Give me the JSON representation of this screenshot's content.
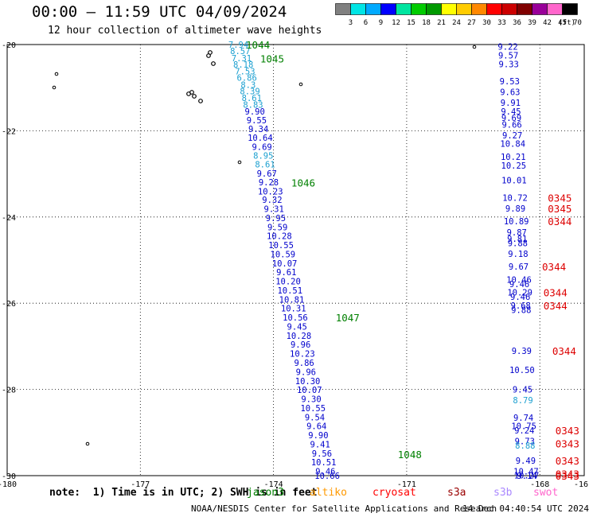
{
  "header": {
    "title": "00:00 – 11:59 UTC 04/09/2024",
    "subtitle": "12 hour collection of altimeter wave heights"
  },
  "legend": {
    "labels": [
      "3",
      "6",
      "9",
      "12",
      "15",
      "18",
      "21",
      "24",
      "27",
      "30",
      "33",
      "36",
      "39",
      "42",
      "45",
      "70"
    ],
    "unit": "(ft)",
    "colors": [
      "#808080",
      "#00e5e5",
      "#00aaff",
      "#0000ff",
      "#00e5a0",
      "#00cc00",
      "#009900",
      "#ffff00",
      "#ffcc00",
      "#ff8800",
      "#ff0000",
      "#cc0000",
      "#800000",
      "#990099",
      "#ff66cc",
      "#000000"
    ]
  },
  "footer": {
    "note": "note:  1) Time is in UTC; 2) SWH is in feet",
    "satellites": [
      {
        "name": "jason3",
        "color": "#008000"
      },
      {
        "name": "altiko",
        "color": "#ff9900"
      },
      {
        "name": "cryosat",
        "color": "#ff0000"
      },
      {
        "name": "s3a",
        "color": "#990000"
      },
      {
        "name": "s3b",
        "color": "#aa88ff"
      },
      {
        "name": "swot",
        "color": "#ff66cc"
      }
    ],
    "credit": "NOAA/NESDIS Center for Satellite Applications and Research",
    "timestamp": "14 Dec 04:40:54 UTC 2024"
  },
  "chart_data": {
    "type": "scatter",
    "xlim": [
      -180,
      -167
    ],
    "ylim": [
      -30,
      -20
    ],
    "x_ticks": [
      "-180",
      "-177",
      "-174",
      "-171",
      "-168",
      "-16"
    ],
    "y_ticks": [
      "-20",
      "-22",
      "-24",
      "-26",
      "-28",
      "-30"
    ],
    "grid": true,
    "series": [
      {
        "track": "west",
        "points": [
          {
            "x": -174.79,
            "y": -20.0,
            "v": "7.94",
            "c": "#1a9fd0"
          },
          {
            "x": -174.75,
            "y": -20.15,
            "v": "8.57",
            "c": "#1a9fd0"
          },
          {
            "x": -174.72,
            "y": -20.31,
            "v": "7.31",
            "c": "#1a9fd0"
          },
          {
            "x": -174.68,
            "y": -20.46,
            "v": "8.18",
            "c": "#1a9fd0"
          },
          {
            "x": -174.64,
            "y": -20.62,
            "v": "7.53",
            "c": "#1a9fd0"
          },
          {
            "x": -174.6,
            "y": -20.77,
            "v": "6.86",
            "c": "#1a9fd0"
          },
          {
            "x": -174.57,
            "y": -20.93,
            "v": "8.3",
            "c": "#1a9fd0"
          },
          {
            "x": -174.53,
            "y": -21.08,
            "v": "8.39",
            "c": "#1a9fd0"
          },
          {
            "x": -174.49,
            "y": -21.24,
            "v": "8.61",
            "c": "#1a9fd0"
          },
          {
            "x": -174.46,
            "y": -21.39,
            "v": "8.83",
            "c": "#1a9fd0"
          },
          {
            "x": -174.42,
            "y": -21.55,
            "v": "9.90",
            "c": "#0000cc"
          },
          {
            "x": -174.38,
            "y": -21.75,
            "v": "9.55",
            "c": "#0000cc"
          },
          {
            "x": -174.34,
            "y": -21.96,
            "v": "9.34",
            "c": "#0000cc"
          },
          {
            "x": -174.3,
            "y": -22.16,
            "v": "10.64",
            "c": "#0000cc"
          },
          {
            "x": -174.26,
            "y": -22.37,
            "v": "9.69",
            "c": "#0000cc"
          },
          {
            "x": -174.23,
            "y": -22.57,
            "v": "8.95",
            "c": "#1a9fd0"
          },
          {
            "x": -174.19,
            "y": -22.78,
            "v": "8.61",
            "c": "#1a9fd0"
          },
          {
            "x": -174.15,
            "y": -22.99,
            "v": "9.67",
            "c": "#0000cc"
          },
          {
            "x": -174.11,
            "y": -23.19,
            "v": "9.28",
            "c": "#0000cc"
          },
          {
            "x": -174.07,
            "y": -23.4,
            "v": "10.23",
            "c": "#0000cc"
          },
          {
            "x": -174.03,
            "y": -23.6,
            "v": "9.32",
            "c": "#0000cc"
          },
          {
            "x": -173.99,
            "y": -23.81,
            "v": "9.31",
            "c": "#0000cc"
          },
          {
            "x": -173.95,
            "y": -24.02,
            "v": "9.95",
            "c": "#0000cc"
          },
          {
            "x": -173.91,
            "y": -24.23,
            "v": "9.59",
            "c": "#0000cc"
          },
          {
            "x": -173.87,
            "y": -24.44,
            "v": "10.28",
            "c": "#0000cc"
          },
          {
            "x": -173.83,
            "y": -24.65,
            "v": "10.55",
            "c": "#0000cc"
          },
          {
            "x": -173.79,
            "y": -24.86,
            "v": "10.59",
            "c": "#0000cc"
          },
          {
            "x": -173.75,
            "y": -25.07,
            "v": "10.07",
            "c": "#0000cc"
          },
          {
            "x": -173.71,
            "y": -25.28,
            "v": "9.61",
            "c": "#0000cc"
          },
          {
            "x": -173.67,
            "y": -25.49,
            "v": "10.20",
            "c": "#0000cc"
          },
          {
            "x": -173.63,
            "y": -25.7,
            "v": "10.51",
            "c": "#0000cc"
          },
          {
            "x": -173.59,
            "y": -25.91,
            "v": "10.81",
            "c": "#0000cc"
          },
          {
            "x": -173.55,
            "y": -26.12,
            "v": "10.31",
            "c": "#0000cc"
          },
          {
            "x": -173.51,
            "y": -26.33,
            "v": "10.56",
            "c": "#0000cc"
          },
          {
            "x": -173.47,
            "y": -26.54,
            "v": "9.45",
            "c": "#0000cc"
          },
          {
            "x": -173.43,
            "y": -26.75,
            "v": "10.28",
            "c": "#0000cc"
          },
          {
            "x": -173.39,
            "y": -26.96,
            "v": "9.96",
            "c": "#0000cc"
          },
          {
            "x": -173.35,
            "y": -27.17,
            "v": "10.23",
            "c": "#0000cc"
          },
          {
            "x": -173.31,
            "y": -27.38,
            "v": "9.86",
            "c": "#0000cc"
          },
          {
            "x": -173.27,
            "y": -27.59,
            "v": "9.96",
            "c": "#0000cc"
          },
          {
            "x": -173.23,
            "y": -27.8,
            "v": "10.30",
            "c": "#0000cc"
          },
          {
            "x": -173.19,
            "y": -28.01,
            "v": "10.07",
            "c": "#0000cc"
          },
          {
            "x": -173.15,
            "y": -28.22,
            "v": "9.30",
            "c": "#0000cc"
          },
          {
            "x": -173.11,
            "y": -28.43,
            "v": "10.55",
            "c": "#0000cc"
          },
          {
            "x": -173.07,
            "y": -28.64,
            "v": "9.54",
            "c": "#0000cc"
          },
          {
            "x": -173.03,
            "y": -28.85,
            "v": "9.64",
            "c": "#0000cc"
          },
          {
            "x": -172.99,
            "y": -29.06,
            "v": "9.90",
            "c": "#0000cc"
          },
          {
            "x": -172.95,
            "y": -29.27,
            "v": "9.41",
            "c": "#0000cc"
          },
          {
            "x": -172.91,
            "y": -29.48,
            "v": "9.56",
            "c": "#0000cc"
          },
          {
            "x": -172.87,
            "y": -29.69,
            "v": "10.51",
            "c": "#0000cc"
          },
          {
            "x": -172.83,
            "y": -29.9,
            "v": "9.46",
            "c": "#0000cc"
          },
          {
            "x": -172.79,
            "y": -30.0,
            "v": "10.66",
            "c": "#0000cc"
          }
        ]
      },
      {
        "track": "east",
        "points": [
          {
            "x": -168.72,
            "y": -20.05,
            "v": "9.22",
            "c": "#0000cc"
          },
          {
            "x": -168.71,
            "y": -20.25,
            "v": "9.57",
            "c": "#0000cc"
          },
          {
            "x": -168.7,
            "y": -20.45,
            "v": "9.33",
            "c": "#0000cc"
          },
          {
            "x": -168.68,
            "y": -20.85,
            "v": "9.53",
            "c": "#0000cc"
          },
          {
            "x": -168.67,
            "y": -21.1,
            "v": "9.63",
            "c": "#0000cc"
          },
          {
            "x": -168.66,
            "y": -21.35,
            "v": "9.91",
            "c": "#0000cc"
          },
          {
            "x": -168.65,
            "y": -21.55,
            "v": "9.45",
            "c": "#0000cc"
          },
          {
            "x": -168.64,
            "y": -21.7,
            "v": "9.69",
            "c": "#0000cc"
          },
          {
            "x": -168.63,
            "y": -21.85,
            "v": "9.66",
            "c": "#0000cc"
          },
          {
            "x": -168.62,
            "y": -22.1,
            "v": "9.27",
            "c": "#0000cc"
          },
          {
            "x": -168.61,
            "y": -22.3,
            "v": "10.84",
            "c": "#0000cc"
          },
          {
            "x": -168.6,
            "y": -22.6,
            "v": "10.21",
            "c": "#0000cc"
          },
          {
            "x": -168.59,
            "y": -22.8,
            "v": "10.25",
            "c": "#0000cc"
          },
          {
            "x": -168.58,
            "y": -23.15,
            "v": "10.01",
            "c": "#0000cc"
          },
          {
            "x": -168.56,
            "y": -23.55,
            "v": "10.72",
            "c": "#0000cc"
          },
          {
            "x": -168.55,
            "y": -23.8,
            "v": "9.89",
            "c": "#0000cc"
          },
          {
            "x": -168.53,
            "y": -24.1,
            "v": "10.89",
            "c": "#0000cc"
          },
          {
            "x": -168.52,
            "y": -24.35,
            "v": "9.87",
            "c": "#0000cc"
          },
          {
            "x": -168.51,
            "y": -24.5,
            "v": "9.81",
            "c": "#0000cc"
          },
          {
            "x": -168.5,
            "y": -24.6,
            "v": "9.88",
            "c": "#0000cc"
          },
          {
            "x": -168.49,
            "y": -24.85,
            "v": "9.18",
            "c": "#0000cc"
          },
          {
            "x": -168.48,
            "y": -25.15,
            "v": "9.67",
            "c": "#0000cc"
          },
          {
            "x": -168.47,
            "y": -25.45,
            "v": "10.46",
            "c": "#0000cc"
          },
          {
            "x": -168.46,
            "y": -25.55,
            "v": "9.46",
            "c": "#0000cc"
          },
          {
            "x": -168.45,
            "y": -25.75,
            "v": "10.29",
            "c": "#0000cc"
          },
          {
            "x": -168.44,
            "y": -25.85,
            "v": "9.46",
            "c": "#0000cc"
          },
          {
            "x": -168.43,
            "y": -26.05,
            "v": "9.68",
            "c": "#0000cc"
          },
          {
            "x": -168.42,
            "y": -26.15,
            "v": "9.88",
            "c": "#0000cc"
          },
          {
            "x": -168.41,
            "y": -27.1,
            "v": "9.39",
            "c": "#0000cc"
          },
          {
            "x": -168.4,
            "y": -27.55,
            "v": "10.50",
            "c": "#0000cc"
          },
          {
            "x": -168.39,
            "y": -28.0,
            "v": "9.45",
            "c": "#0000cc"
          },
          {
            "x": -168.38,
            "y": -28.25,
            "v": "8.79",
            "c": "#1a9fd0"
          },
          {
            "x": -168.37,
            "y": -28.65,
            "v": "9.74",
            "c": "#0000cc"
          },
          {
            "x": -168.36,
            "y": -28.85,
            "v": "10.75",
            "c": "#0000cc"
          },
          {
            "x": -168.35,
            "y": -28.95,
            "v": "9.24",
            "c": "#0000cc"
          },
          {
            "x": -168.34,
            "y": -29.2,
            "v": "9.73",
            "c": "#0000cc"
          },
          {
            "x": -168.33,
            "y": -29.3,
            "v": "8.88",
            "c": "#1a9fd0"
          },
          {
            "x": -168.32,
            "y": -29.65,
            "v": "9.49",
            "c": "#0000cc"
          },
          {
            "x": -168.31,
            "y": -29.9,
            "v": "10.47",
            "c": "#0000cc"
          },
          {
            "x": -168.3,
            "y": -29.99,
            "v": "10.27",
            "c": "#0000cc"
          },
          {
            "x": -168.29,
            "y": -30.0,
            "v": "9.14",
            "c": "#0000cc"
          }
        ]
      }
    ],
    "annotations": [
      {
        "x": -174.62,
        "y": -20.0,
        "text": "1044",
        "color": "#008000"
      },
      {
        "x": -174.3,
        "y": -20.32,
        "text": "1045",
        "color": "#008000"
      },
      {
        "x": -173.6,
        "y": -23.2,
        "text": "1046",
        "color": "#008000"
      },
      {
        "x": -172.6,
        "y": -26.33,
        "text": "1047",
        "color": "#008000"
      },
      {
        "x": -171.2,
        "y": -29.5,
        "text": "1048",
        "color": "#008000"
      },
      {
        "x": -167.82,
        "y": -23.55,
        "text": "0345",
        "color": "#dd0000"
      },
      {
        "x": -167.82,
        "y": -23.8,
        "text": "0345",
        "color": "#dd0000"
      },
      {
        "x": -167.82,
        "y": -24.1,
        "text": "0344",
        "color": "#dd0000"
      },
      {
        "x": -167.95,
        "y": -25.15,
        "text": "0344",
        "color": "#dd0000"
      },
      {
        "x": -167.92,
        "y": -25.75,
        "text": "0344",
        "color": "#dd0000"
      },
      {
        "x": -167.92,
        "y": -26.05,
        "text": "0344",
        "color": "#dd0000"
      },
      {
        "x": -167.72,
        "y": -27.1,
        "text": "0344",
        "color": "#dd0000"
      },
      {
        "x": -167.65,
        "y": -28.95,
        "text": "0343",
        "color": "#dd0000"
      },
      {
        "x": -167.65,
        "y": -29.25,
        "text": "0343",
        "color": "#dd0000"
      },
      {
        "x": -167.65,
        "y": -29.65,
        "text": "0343",
        "color": "#dd0000"
      },
      {
        "x": -167.65,
        "y": -29.95,
        "text": "0343",
        "color": "#dd0000"
      },
      {
        "x": -167.65,
        "y": -30.0,
        "text": "0343",
        "color": "#dd0000"
      }
    ]
  }
}
